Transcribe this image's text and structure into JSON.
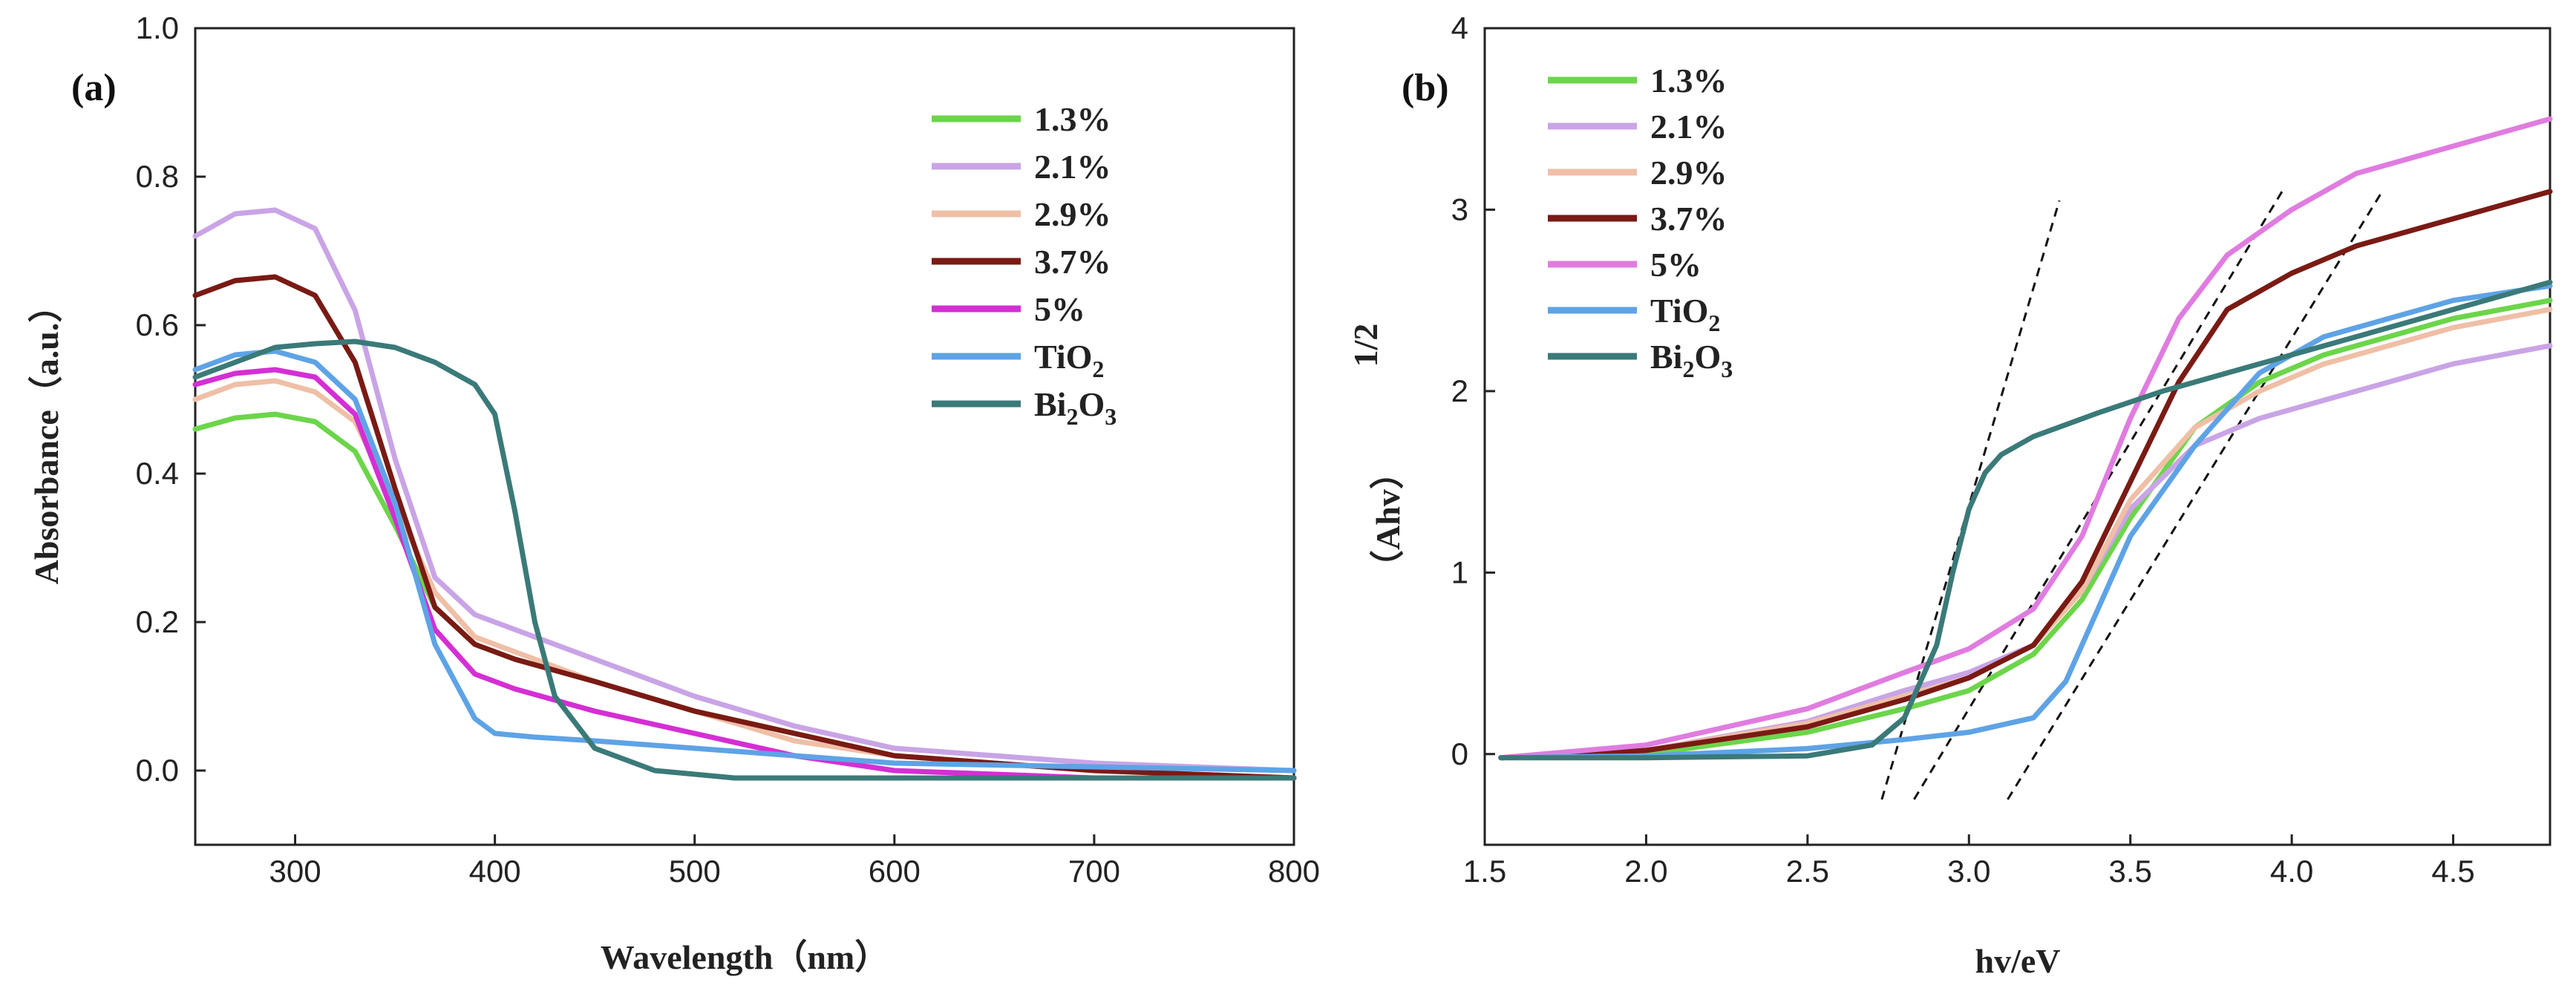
{
  "chart_data": [
    {
      "type": "line",
      "panel_label": "(a)",
      "xlabel": "Wavelength（nm）",
      "ylabel": "Absorbance（a.u.）",
      "xlim": [
        250,
        800
      ],
      "ylim": [
        -0.1,
        1.0
      ],
      "xticks": [
        300,
        400,
        500,
        600,
        700,
        800
      ],
      "xtick_labels": [
        "300",
        "400",
        "500",
        "600",
        "700",
        "800"
      ],
      "yticks": [
        0.0,
        0.2,
        0.4,
        0.6,
        0.8,
        1.0
      ],
      "ytick_labels": [
        "0.0",
        "0.2",
        "0.4",
        "0.6",
        "0.8",
        "1.0"
      ],
      "legend_position": "top-right",
      "series": [
        {
          "name": "1.3%",
          "label_main": "1.3%",
          "label_sub": "",
          "label_tail": "",
          "color": "#6cd54a",
          "x": [
            250,
            270,
            290,
            310,
            330,
            350,
            370,
            390,
            410,
            450,
            500,
            550,
            600,
            700,
            800
          ],
          "y": [
            0.46,
            0.475,
            0.48,
            0.47,
            0.43,
            0.33,
            0.22,
            0.17,
            0.15,
            0.12,
            0.08,
            0.05,
            0.02,
            0.0,
            -0.01
          ]
        },
        {
          "name": "2.1%",
          "label_main": "2.1%",
          "label_sub": "",
          "label_tail": "",
          "color": "#c9a4e6",
          "x": [
            250,
            270,
            290,
            310,
            330,
            350,
            370,
            390,
            410,
            450,
            500,
            550,
            600,
            700,
            800
          ],
          "y": [
            0.72,
            0.75,
            0.755,
            0.73,
            0.62,
            0.42,
            0.26,
            0.21,
            0.19,
            0.15,
            0.1,
            0.06,
            0.03,
            0.01,
            0.0
          ]
        },
        {
          "name": "2.9%",
          "label_main": "2.9%",
          "label_sub": "",
          "label_tail": "",
          "color": "#efbfa6",
          "x": [
            250,
            270,
            290,
            310,
            330,
            350,
            370,
            390,
            410,
            450,
            500,
            550,
            600,
            700,
            800
          ],
          "y": [
            0.5,
            0.52,
            0.525,
            0.51,
            0.47,
            0.36,
            0.24,
            0.18,
            0.16,
            0.12,
            0.08,
            0.04,
            0.02,
            0.0,
            -0.01
          ]
        },
        {
          "name": "3.7%",
          "label_main": "3.7%",
          "label_sub": "",
          "label_tail": "",
          "color": "#7a1a14",
          "x": [
            250,
            270,
            290,
            310,
            330,
            350,
            370,
            390,
            410,
            450,
            500,
            550,
            600,
            700,
            800
          ],
          "y": [
            0.64,
            0.66,
            0.665,
            0.64,
            0.55,
            0.38,
            0.22,
            0.17,
            0.15,
            0.12,
            0.08,
            0.05,
            0.02,
            0.0,
            -0.01
          ]
        },
        {
          "name": "5%",
          "label_main": "5%",
          "label_sub": "",
          "label_tail": "",
          "color": "#d42fd4",
          "x": [
            250,
            270,
            290,
            310,
            330,
            350,
            370,
            390,
            410,
            450,
            500,
            550,
            600,
            700,
            800
          ],
          "y": [
            0.52,
            0.535,
            0.54,
            0.53,
            0.48,
            0.34,
            0.19,
            0.13,
            0.11,
            0.08,
            0.05,
            0.02,
            0.0,
            -0.01,
            -0.01
          ]
        },
        {
          "name": "TiO2",
          "label_main": "TiO",
          "label_sub": "2",
          "label_tail": "",
          "color": "#5ea3e6",
          "x": [
            250,
            270,
            290,
            310,
            330,
            350,
            370,
            390,
            400,
            420,
            450,
            500,
            550,
            600,
            700,
            800
          ],
          "y": [
            0.54,
            0.56,
            0.565,
            0.55,
            0.5,
            0.36,
            0.17,
            0.07,
            0.05,
            0.045,
            0.04,
            0.03,
            0.02,
            0.01,
            0.005,
            0.0
          ]
        },
        {
          "name": "Bi2O3",
          "label_main": "Bi",
          "label_sub": "2",
          "label_tail": "O",
          "label_sub2": "3",
          "color": "#3a7a78",
          "x": [
            250,
            270,
            290,
            310,
            330,
            350,
            370,
            390,
            400,
            410,
            420,
            430,
            450,
            480,
            520,
            600,
            700,
            800
          ],
          "y": [
            0.53,
            0.55,
            0.57,
            0.575,
            0.578,
            0.57,
            0.55,
            0.52,
            0.48,
            0.35,
            0.2,
            0.1,
            0.03,
            0.0,
            -0.01,
            -0.01,
            -0.01,
            -0.01
          ]
        }
      ]
    },
    {
      "type": "line",
      "panel_label": "(b)",
      "xlabel": "hv/eV",
      "ylabel": "（Ahv）",
      "ylabel_sup": "1/2",
      "xlim": [
        1.5,
        4.8
      ],
      "ylim": [
        -0.5,
        4.0
      ],
      "xticks": [
        1.5,
        2.0,
        2.5,
        3.0,
        3.5,
        4.0,
        4.5
      ],
      "xtick_labels": [
        "1.5",
        "2.0",
        "2.5",
        "3.0",
        "3.5",
        "4.0",
        "4.5"
      ],
      "yticks": [
        0,
        1,
        2,
        3,
        4
      ],
      "ytick_labels": [
        "0",
        "1",
        "2",
        "3",
        "4"
      ],
      "legend_position": "top-left",
      "series": [
        {
          "name": "1.3%",
          "label_main": "1.3%",
          "label_sub": "",
          "label_tail": "",
          "color": "#6cd54a",
          "x": [
            1.55,
            2.0,
            2.5,
            2.8,
            3.0,
            3.2,
            3.35,
            3.5,
            3.7,
            3.9,
            4.1,
            4.3,
            4.5,
            4.8
          ],
          "y": [
            -0.02,
            0.0,
            0.12,
            0.25,
            0.35,
            0.55,
            0.85,
            1.3,
            1.8,
            2.05,
            2.2,
            2.3,
            2.4,
            2.5
          ]
        },
        {
          "name": "2.1%",
          "label_main": "2.1%",
          "label_sub": "",
          "label_tail": "",
          "color": "#c9a4e6",
          "x": [
            1.55,
            2.0,
            2.5,
            2.8,
            3.0,
            3.2,
            3.35,
            3.5,
            3.7,
            3.9,
            4.1,
            4.3,
            4.5,
            4.8
          ],
          "y": [
            -0.02,
            0.02,
            0.18,
            0.35,
            0.45,
            0.6,
            0.9,
            1.35,
            1.7,
            1.85,
            1.95,
            2.05,
            2.15,
            2.25
          ]
        },
        {
          "name": "2.9%",
          "label_main": "2.9%",
          "label_sub": "",
          "label_tail": "",
          "color": "#efbfa6",
          "x": [
            1.55,
            2.0,
            2.5,
            2.8,
            3.0,
            3.2,
            3.35,
            3.5,
            3.7,
            3.9,
            4.1,
            4.3,
            4.5,
            4.8
          ],
          "y": [
            -0.02,
            0.02,
            0.17,
            0.32,
            0.42,
            0.6,
            0.9,
            1.4,
            1.8,
            2.0,
            2.15,
            2.25,
            2.35,
            2.45
          ]
        },
        {
          "name": "3.7%",
          "label_main": "3.7%",
          "label_sub": "",
          "label_tail": "",
          "color": "#7a1a14",
          "x": [
            1.55,
            2.0,
            2.5,
            2.8,
            3.0,
            3.2,
            3.35,
            3.5,
            3.65,
            3.8,
            4.0,
            4.2,
            4.5,
            4.8
          ],
          "y": [
            -0.02,
            0.02,
            0.15,
            0.3,
            0.42,
            0.6,
            0.95,
            1.5,
            2.05,
            2.45,
            2.65,
            2.8,
            2.95,
            3.1
          ]
        },
        {
          "name": "5%",
          "label_main": "5%",
          "label_sub": "",
          "label_tail": "",
          "color": "#e07ce0",
          "x": [
            1.55,
            2.0,
            2.5,
            2.8,
            3.0,
            3.2,
            3.35,
            3.5,
            3.65,
            3.8,
            4.0,
            4.2,
            4.5,
            4.8
          ],
          "y": [
            -0.02,
            0.05,
            0.25,
            0.45,
            0.58,
            0.8,
            1.2,
            1.85,
            2.4,
            2.75,
            3.0,
            3.2,
            3.35,
            3.5
          ]
        },
        {
          "name": "TiO2",
          "label_main": "TiO",
          "label_sub": "2",
          "label_tail": "",
          "color": "#5ea3e6",
          "x": [
            1.55,
            2.0,
            2.5,
            2.8,
            3.0,
            3.2,
            3.3,
            3.4,
            3.5,
            3.7,
            3.9,
            4.1,
            4.3,
            4.5,
            4.8
          ],
          "y": [
            -0.02,
            -0.01,
            0.03,
            0.08,
            0.12,
            0.2,
            0.4,
            0.8,
            1.2,
            1.7,
            2.1,
            2.3,
            2.4,
            2.5,
            2.58
          ]
        },
        {
          "name": "Bi2O3",
          "label_main": "Bi",
          "label_sub": "2",
          "label_tail": "O",
          "label_sub2": "3",
          "color": "#3a7a78",
          "x": [
            1.55,
            2.0,
            2.5,
            2.7,
            2.8,
            2.9,
            2.95,
            3.0,
            3.05,
            3.1,
            3.2,
            3.4,
            3.6,
            3.8,
            4.0,
            4.2,
            4.5,
            4.8
          ],
          "y": [
            -0.02,
            -0.02,
            -0.01,
            0.05,
            0.2,
            0.6,
            1.0,
            1.35,
            1.55,
            1.65,
            1.75,
            1.88,
            2.0,
            2.1,
            2.2,
            2.3,
            2.45,
            2.6
          ]
        }
      ],
      "tangents": [
        {
          "x": [
            2.73,
            3.28
          ],
          "y": [
            -0.25,
            3.05
          ]
        },
        {
          "x": [
            2.83,
            3.97
          ],
          "y": [
            -0.25,
            3.1
          ]
        },
        {
          "x": [
            3.12,
            4.28
          ],
          "y": [
            -0.25,
            3.1
          ]
        }
      ]
    }
  ]
}
